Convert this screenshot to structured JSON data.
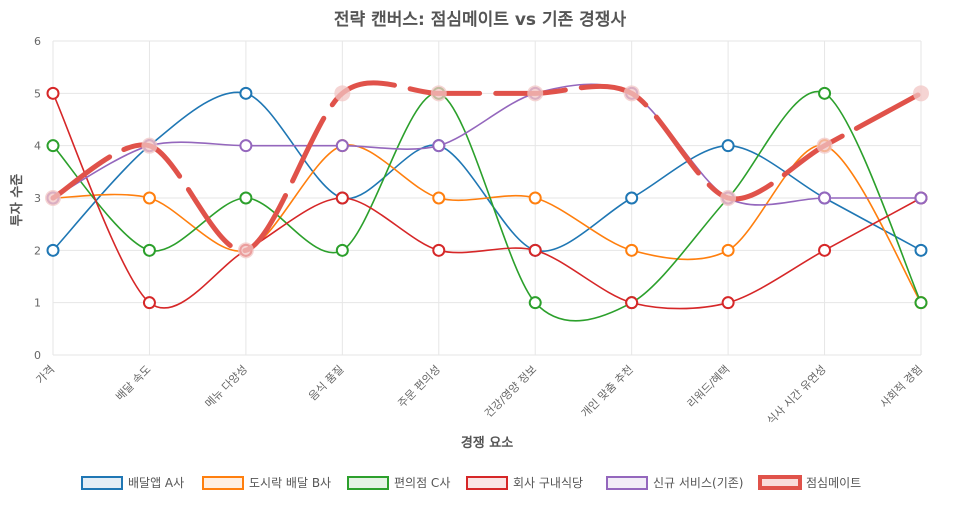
{
  "chart_data": {
    "type": "line",
    "title": "전략 캔버스: 점심메이트 vs 기존 경쟁사",
    "xlabel": "경쟁 요소",
    "ylabel": "투자 수준",
    "ylim": [
      0,
      6
    ],
    "yticks": [
      0,
      1,
      2,
      3,
      4,
      5,
      6
    ],
    "grid": true,
    "legend_position": "bottom",
    "categories": [
      "가격",
      "배달 속도",
      "메뉴 다양성",
      "음식 품질",
      "주문 편의성",
      "건강/영양 정보",
      "개인 맞춤 추천",
      "리워드/혜택",
      "식사 시간 유연성",
      "사회적 경험"
    ],
    "series": [
      {
        "name": "배달앱 A사",
        "color": "#1f77b4",
        "values": [
          2,
          4,
          5,
          3,
          4,
          2,
          3,
          4,
          3,
          2
        ],
        "emphasis": false
      },
      {
        "name": "도시락 배달 B사",
        "color": "#ff7f0e",
        "values": [
          3,
          3,
          2,
          4,
          3,
          3,
          2,
          2,
          4,
          1
        ],
        "emphasis": false
      },
      {
        "name": "편의점 C사",
        "color": "#2ca02c",
        "values": [
          4,
          2,
          3,
          2,
          5,
          1,
          1,
          3,
          5,
          1
        ],
        "emphasis": false
      },
      {
        "name": "회사 구내식당",
        "color": "#d62728",
        "values": [
          5,
          1,
          2,
          3,
          2,
          2,
          1,
          1,
          2,
          3
        ],
        "emphasis": false
      },
      {
        "name": "신규 서비스(기존)",
        "color": "#9467bd",
        "values": [
          3,
          4,
          4,
          4,
          4,
          5,
          5,
          3,
          3,
          3
        ],
        "emphasis": false
      },
      {
        "name": "점심메이트",
        "color": "#e0524a",
        "values": [
          3,
          4,
          2,
          5,
          5,
          5,
          5,
          3,
          4,
          5
        ],
        "emphasis": true
      }
    ]
  }
}
